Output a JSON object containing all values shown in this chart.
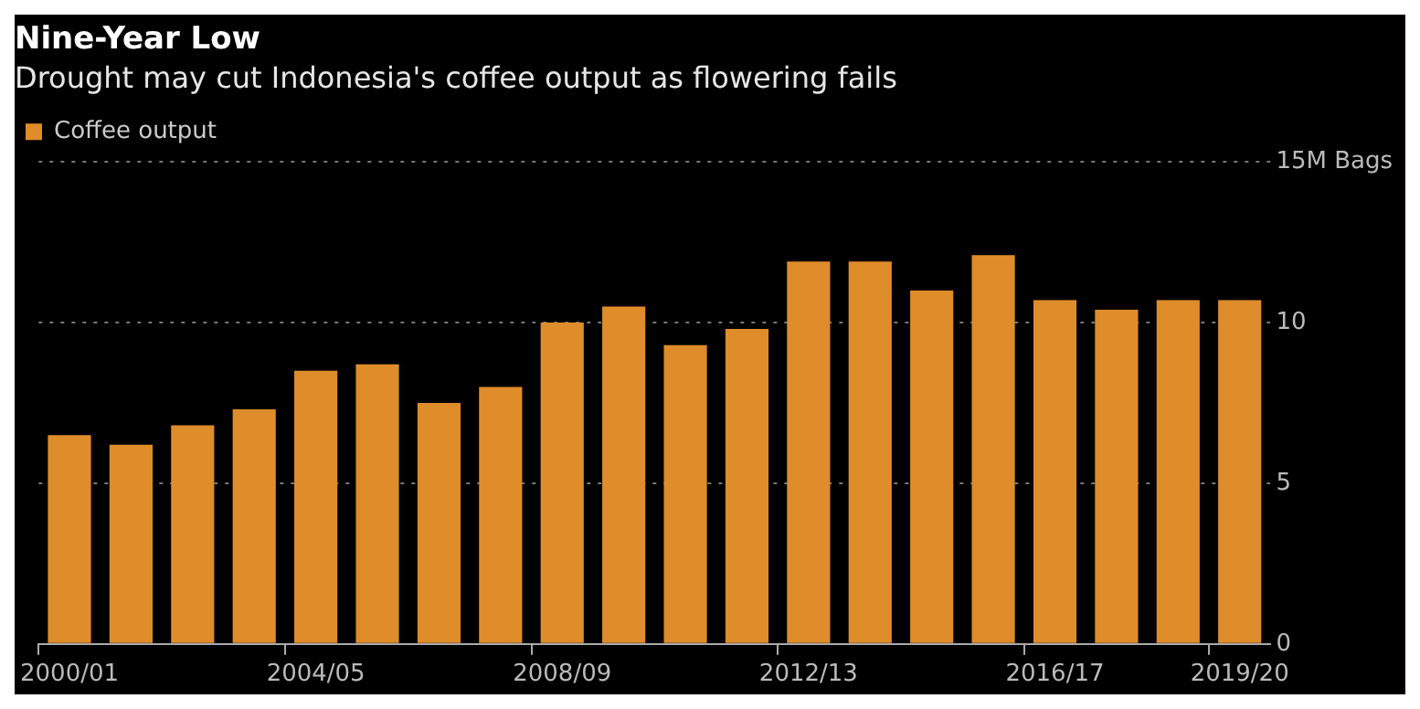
{
  "chart_data": {
    "type": "bar",
    "title": "Nine-Year Low",
    "subtitle": "Drought may cut Indonesia's coffee output as flowering fails",
    "categories": [
      "2000/01",
      null,
      null,
      null,
      "2004/05",
      null,
      null,
      null,
      "2008/09",
      null,
      null,
      null,
      "2012/13",
      null,
      null,
      null,
      "2016/17",
      null,
      null,
      "2019/20"
    ],
    "series": [
      {
        "name": "Coffee output",
        "color": "#df8c2a",
        "values": [
          6.5,
          6.2,
          6.8,
          7.3,
          8.5,
          8.7,
          7.5,
          8.0,
          10.0,
          10.5,
          9.3,
          9.8,
          11.9,
          11.9,
          11.0,
          12.1,
          10.7,
          10.4,
          10.7,
          10.7
        ]
      }
    ],
    "ylim": [
      0,
      15
    ],
    "yticks": [
      0,
      5,
      10,
      {
        "value": 15,
        "label": "15M Bags"
      }
    ],
    "grid": "y",
    "legend": "top left"
  }
}
